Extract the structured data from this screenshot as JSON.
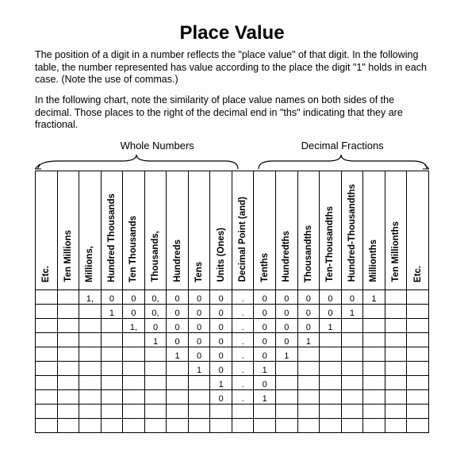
{
  "title": "Place Value",
  "para1": "The position of a digit in a number reflects the \"place value\" of that digit. In the following table, the number represented has value according to the place the digit \"1\" holds in each case. (Note the use of commas.)",
  "para2": "In the following chart, note the similarity of place value names on both sides of the decimal.  Those places to the right of the decimal end in \"ths\" indicating that they are fractional.",
  "section_whole": "Whole Numbers",
  "section_decimal": "Decimal Fractions",
  "columns": [
    "Etc.",
    "Ten Millions",
    "Millions,",
    "Hundred Thousands",
    "Ten Thousands",
    "Thousands,",
    "Hundreds",
    "Tens",
    "Units (Ones)",
    "Decimal Point (and)",
    "Tenths",
    "Hundredths",
    "Thousandths",
    "Ten-Thousandths",
    "Hundred-Thousandths",
    "Millionths",
    "Ten Millionths",
    "Etc."
  ],
  "rows": [
    [
      "",
      "",
      "1,",
      "0",
      "0",
      "0,",
      "0",
      "0",
      "0",
      ".",
      "0",
      "0",
      "0",
      "0",
      "0",
      "1",
      "",
      ""
    ],
    [
      "",
      "",
      "",
      "1",
      "0",
      "0,",
      "0",
      "0",
      "0",
      ".",
      "0",
      "0",
      "0",
      "0",
      "1",
      "",
      "",
      ""
    ],
    [
      "",
      "",
      "",
      "",
      "1,",
      "0",
      "0",
      "0",
      "0",
      ".",
      "0",
      "0",
      "0",
      "1",
      "",
      "",
      "",
      ""
    ],
    [
      "",
      "",
      "",
      "",
      "",
      "1",
      "0",
      "0",
      "0",
      ".",
      "0",
      "0",
      "1",
      "",
      "",
      "",
      "",
      ""
    ],
    [
      "",
      "",
      "",
      "",
      "",
      "",
      "1",
      "0",
      "0",
      ".",
      "0",
      "1",
      "",
      "",
      "",
      "",
      "",
      ""
    ],
    [
      "",
      "",
      "",
      "",
      "",
      "",
      "",
      "1",
      "0",
      ".",
      "1",
      "",
      "",
      "",
      "",
      "",
      "",
      ""
    ],
    [
      "",
      "",
      "",
      "",
      "",
      "",
      "",
      "",
      "1",
      ".",
      "0",
      "",
      "",
      "",
      "",
      "",
      "",
      ""
    ],
    [
      "",
      "",
      "",
      "",
      "",
      "",
      "",
      "",
      "0",
      ".",
      "1",
      "",
      "",
      "",
      "",
      "",
      "",
      ""
    ],
    [
      "",
      "",
      "",
      "",
      "",
      "",
      "",
      "",
      "",
      "",
      "",
      "",
      "",
      "",
      "",
      "",
      "",
      ""
    ],
    [
      "",
      "",
      "",
      "",
      "",
      "",
      "",
      "",
      "",
      "",
      "",
      "",
      "",
      "",
      "",
      "",
      "",
      ""
    ]
  ],
  "colors": {
    "line": "#000000",
    "bg": "#fdfdfd"
  }
}
